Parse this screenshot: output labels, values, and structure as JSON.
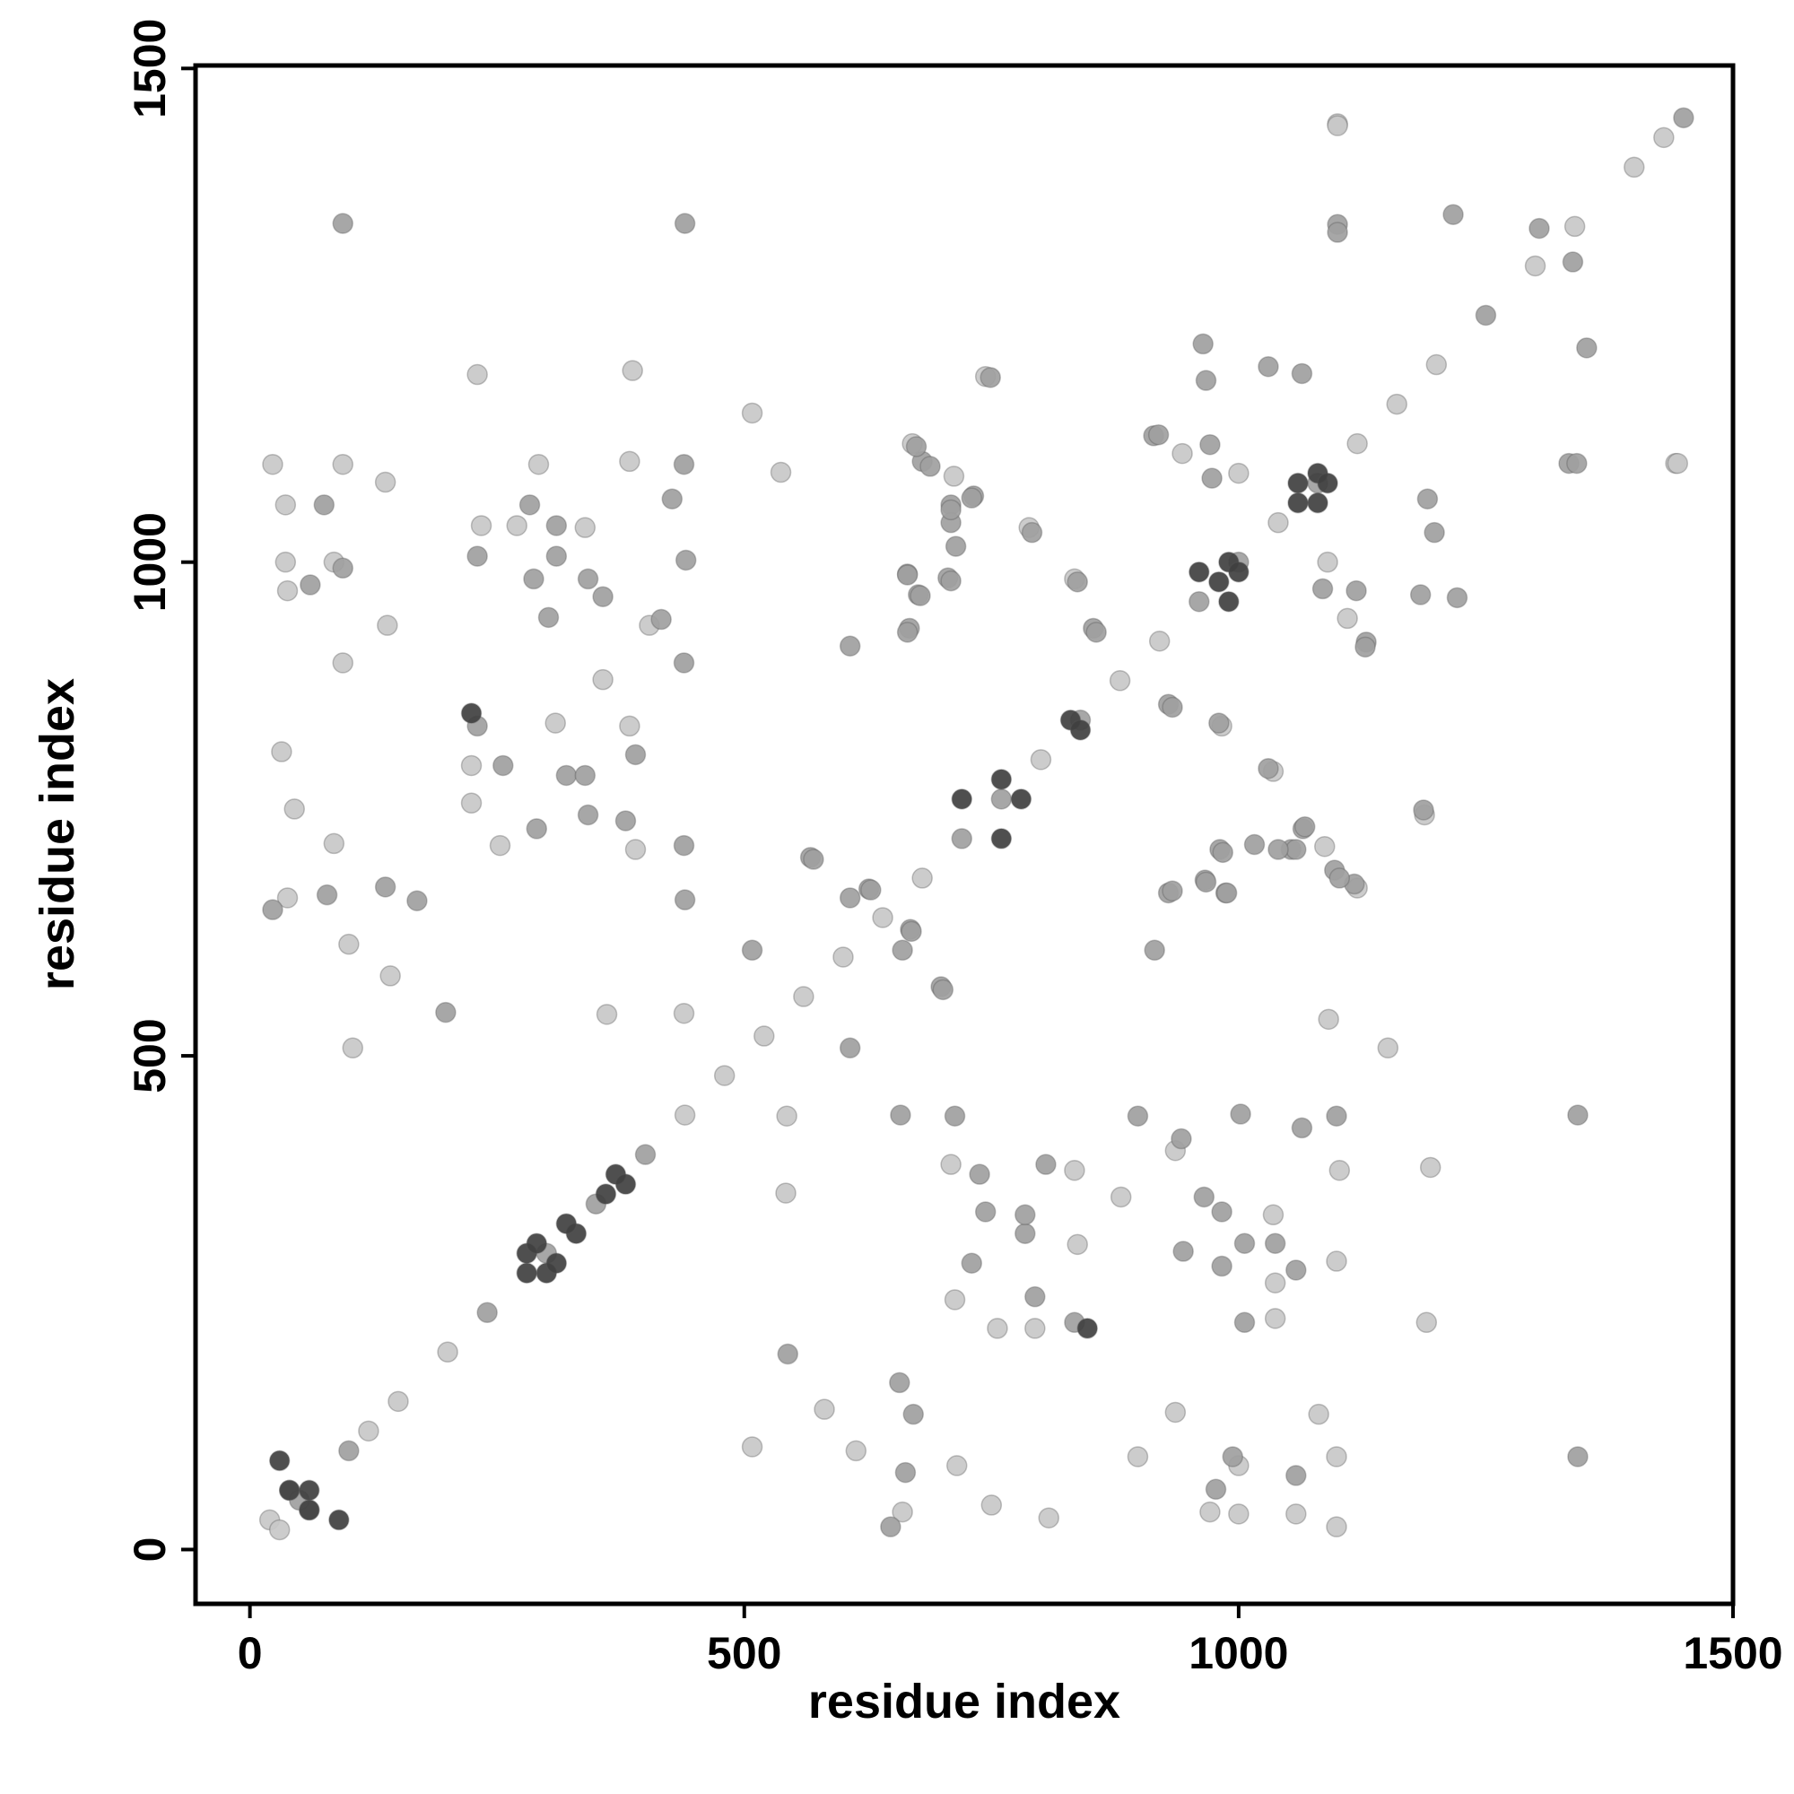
{
  "chart_data": {
    "type": "scatter",
    "xlabel": "residue index",
    "ylabel": "residue index",
    "xlim": [
      -55,
      1500
    ],
    "ylim": [
      -55,
      1503
    ],
    "xticks": [
      0,
      500,
      1000,
      1500
    ],
    "yticks": [
      0,
      500,
      1000,
      1500
    ],
    "grid": false,
    "series": [
      {
        "color": "#c8c8c8",
        "x": [
          23,
          36,
          36,
          38,
          85,
          94,
          137,
          139,
          94,
          32,
          45,
          85,
          38,
          100,
          142,
          104,
          230,
          234,
          270,
          292,
          339,
          384,
          387,
          404,
          357,
          224,
          224,
          253,
          384,
          390,
          309,
          361,
          439,
          537,
          508,
          670,
          712,
          744,
          788,
          834,
          943,
          1000,
          1100,
          1442,
          1099,
          1058,
          1000,
          971,
          1000,
          1099,
          1081,
          936,
          898,
          808,
          750,
          715,
          660,
          613,
          581,
          508,
          1190,
          1037,
          1037,
          1099,
          1035,
          1102,
          1194,
          936,
          881,
          794,
          756,
          713,
          834,
          709,
          837,
          542,
          543,
          1091,
          1151,
          1120,
          1087,
          1188,
          1035,
          983,
          1110,
          1090,
          1444,
          1100,
          120,
          150,
          200,
          440,
          480,
          520,
          560,
          600,
          640,
          680,
          800,
          880,
          920,
          1040,
          1120,
          1160,
          1200,
          1300,
          1340,
          1400,
          1430,
          20,
          30
        ],
        "y": [
          1099,
          1058,
          1000,
          971,
          1000,
          1099,
          1081,
          936,
          898,
          808,
          750,
          715,
          660,
          613,
          581,
          508,
          1190,
          1037,
          1037,
          1099,
          1035,
          1102,
          1194,
          936,
          881,
          794,
          756,
          713,
          834,
          709,
          837,
          542,
          543,
          1091,
          1151,
          1120,
          1087,
          1188,
          1035,
          983,
          1110,
          1090,
          1444,
          1100,
          23,
          36,
          36,
          38,
          85,
          94,
          137,
          139,
          94,
          32,
          45,
          85,
          38,
          100,
          142,
          104,
          230,
          234,
          270,
          292,
          339,
          384,
          387,
          404,
          357,
          224,
          224,
          253,
          384,
          390,
          309,
          361,
          439,
          537,
          508,
          670,
          712,
          744,
          788,
          834,
          943,
          1000,
          1100,
          1442,
          120,
          150,
          200,
          440,
          480,
          520,
          560,
          600,
          640,
          680,
          800,
          880,
          920,
          1040,
          1120,
          1160,
          1200,
          1300,
          1340,
          1400,
          1430,
          30,
          20
        ]
      },
      {
        "color": "#a0a0a0",
        "x": [
          61,
          75,
          94,
          78,
          23,
          198,
          137,
          169,
          230,
          283,
          310,
          310,
          287,
          342,
          357,
          416,
          439,
          440,
          94,
          427,
          441,
          439,
          302,
          230,
          256,
          290,
          320,
          339,
          342,
          390,
          380,
          439,
          440,
          508,
          567,
          607,
          607,
          626,
          668,
          699,
          680,
          709,
          732,
          709,
          706,
          665,
          676,
          667,
          853,
          964,
          914,
          971,
          1030,
          1100,
          1191,
          1184,
          1085,
          1129,
          1334,
          1352,
          1338,
          980,
          929,
          1030,
          981,
          966,
          987,
          1016,
          1053,
          1065,
          1097,
          1117,
          1187,
          929,
          977,
          1058,
          994,
          663,
          648,
          544,
          671,
          657,
          1006,
          1058,
          1037,
          1006,
          983,
          983,
          965,
          942,
          1099,
          1343,
          1343,
          1064,
          1002,
          898,
          944,
          834,
          794,
          730,
          784,
          784,
          744,
          805,
          738,
          713,
          658,
          607,
          701,
          915,
          660,
          669,
          628,
          570,
          1102,
          1058,
          1067,
          1040,
          984,
          988,
          967,
          933,
          933,
          1221,
          1128,
          1119,
          1198,
          1342,
          1064,
          967,
          973,
          919,
          1100,
          1217,
          1304,
          837,
          856,
          791,
          709,
          678,
          665,
          714,
          709,
          730,
          688,
          674,
          749,
          665,
          100,
          240,
          300,
          350,
          400,
          720,
          760,
          840,
          960,
          1000,
          1080,
          1250,
          1450,
          40,
          60,
          50
        ],
        "y": [
          977,
          1058,
          994,
          663,
          648,
          544,
          671,
          657,
          1006,
          1058,
          1037,
          1006,
          983,
          983,
          965,
          942,
          1099,
          1343,
          1343,
          1064,
          1002,
          898,
          944,
          834,
          794,
          730,
          784,
          784,
          744,
          805,
          738,
          713,
          658,
          607,
          701,
          915,
          660,
          669,
          628,
          570,
          1102,
          1058,
          1067,
          1040,
          984,
          988,
          967,
          933,
          933,
          1221,
          1128,
          1119,
          1198,
          1342,
          1064,
          967,
          973,
          919,
          1100,
          1217,
          1304,
          837,
          856,
          791,
          709,
          678,
          665,
          714,
          709,
          730,
          688,
          674,
          749,
          665,
          61,
          75,
          94,
          78,
          23,
          198,
          137,
          169,
          230,
          283,
          310,
          310,
          287,
          342,
          357,
          416,
          439,
          440,
          94,
          427,
          441,
          439,
          302,
          230,
          256,
          290,
          320,
          339,
          342,
          390,
          380,
          439,
          440,
          508,
          567,
          607,
          607,
          626,
          668,
          699,
          680,
          709,
          732,
          709,
          706,
          665,
          676,
          667,
          853,
          964,
          914,
          971,
          1030,
          1100,
          1191,
          1184,
          1085,
          1129,
          1334,
          1352,
          1338,
          980,
          929,
          1030,
          981,
          966,
          987,
          1016,
          1053,
          1065,
          1097,
          1117,
          1187,
          929,
          100,
          240,
          300,
          350,
          400,
          720,
          760,
          840,
          960,
          1000,
          1080,
          1250,
          1450,
          60,
          40,
          50
        ]
      },
      {
        "color": "#404040",
        "x": [
          224,
          280,
          290,
          330,
          370,
          960,
          990,
          720,
          760,
          1060,
          1080,
          30,
          60,
          830,
          847,
          300,
          310,
          320,
          380,
          990,
          1000,
          760,
          780,
          1080,
          1090,
          90,
          40,
          840,
          280,
          980,
          60,
          1060,
          360
        ],
        "y": [
          847,
          300,
          310,
          320,
          380,
          990,
          1000,
          760,
          780,
          1080,
          1090,
          90,
          40,
          840,
          224,
          280,
          290,
          330,
          370,
          960,
          990,
          720,
          760,
          1060,
          1080,
          30,
          60,
          830,
          280,
          980,
          60,
          1060,
          360
        ]
      }
    ]
  }
}
